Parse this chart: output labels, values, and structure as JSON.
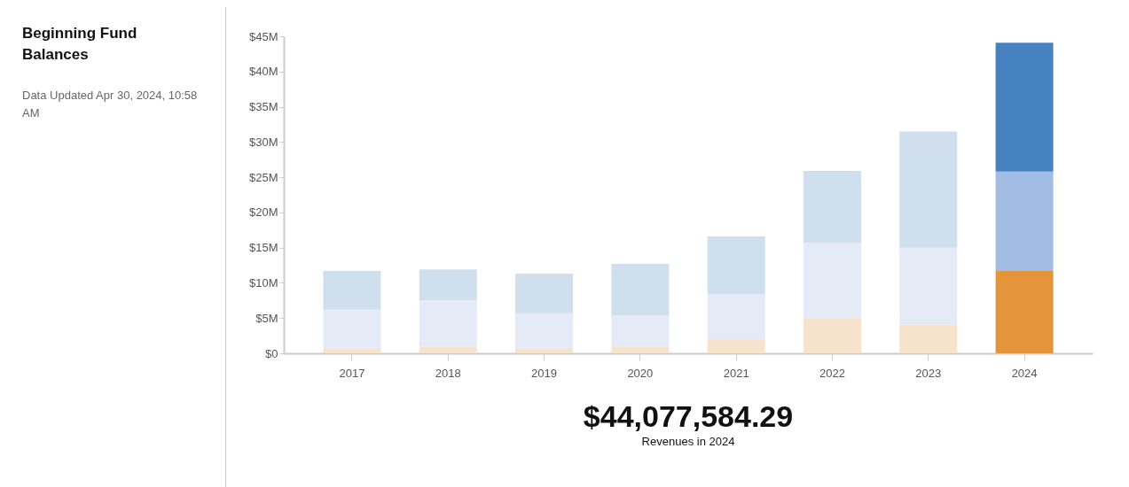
{
  "chart_data": {
    "type": "bar",
    "title": "Beginning Fund Balances",
    "subtitle": "Data Updated Apr 30, 2024, 10:58 AM",
    "annotations": [
      "$44,077,584.29",
      "Revenues in 2024"
    ],
    "categories": [
      "2017",
      "2018",
      "2019",
      "2020",
      "2021",
      "2022",
      "2023",
      "2024"
    ],
    "stacked": true,
    "series": [
      {
        "colors": [
          "#f7e2cb",
          "#f7e2cb",
          "#f7e2cb",
          "#f7e2cb",
          "#f7e2cb",
          "#f7e2cb",
          "#f7e2cb",
          "#e4953b"
        ],
        "values": [
          0.7,
          0.9,
          0.7,
          0.9,
          2.0,
          5.0,
          4.1,
          11.7
        ]
      },
      {
        "colors": [
          "#e5ebf6",
          "#e5ebf6",
          "#e5ebf6",
          "#e5ebf6",
          "#e5ebf6",
          "#e5ebf6",
          "#e5ebf6",
          "#a3bce3"
        ],
        "values": [
          5.5,
          6.6,
          5.0,
          4.5,
          6.4,
          10.7,
          10.9,
          14.1
        ]
      },
      {
        "colors": [
          "#d0dfee",
          "#d0dfee",
          "#d0dfee",
          "#d0dfee",
          "#d0dfee",
          "#d0dfee",
          "#d0dfee",
          "#4682c0"
        ],
        "values": [
          5.5,
          4.4,
          5.6,
          7.3,
          8.2,
          10.2,
          16.5,
          18.3
        ]
      }
    ],
    "ylim": [
      0,
      45
    ],
    "yticks": [
      {
        "value": 0,
        "label": "$0"
      },
      {
        "value": 5,
        "label": "$5M"
      },
      {
        "value": 10,
        "label": "$10M"
      },
      {
        "value": 15,
        "label": "$15M"
      },
      {
        "value": 20,
        "label": "$20M"
      },
      {
        "value": 25,
        "label": "$25M"
      },
      {
        "value": 30,
        "label": "$30M"
      },
      {
        "value": 35,
        "label": "$35M"
      },
      {
        "value": 40,
        "label": "$40M"
      },
      {
        "value": 45,
        "label": "$45M"
      }
    ]
  }
}
